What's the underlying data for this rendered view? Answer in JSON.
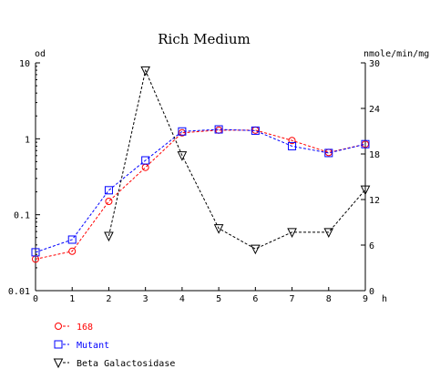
{
  "chart_data": {
    "type": "line",
    "title": "Rich Medium",
    "y_left_label": "od",
    "y_right_label": "nmole/min/mg",
    "x_unit_label": "h",
    "x_ticks": [
      "0",
      "1",
      "2",
      "3",
      "4",
      "5",
      "6",
      "7",
      "8",
      "9"
    ],
    "y_left_scale": "log",
    "y_left_ticks": [
      "10",
      "1",
      "0.1",
      "0.01"
    ],
    "y_left_range": [
      0.01,
      10
    ],
    "y_right_ticks": [
      "30",
      "24",
      "18",
      "12",
      "6",
      "0"
    ],
    "y_right_range": [
      0,
      30
    ],
    "x_range": [
      0,
      9
    ],
    "grid": false,
    "legend_position": "bottom-left",
    "series": [
      {
        "name": "168",
        "axis": "left",
        "color": "#ff0000",
        "marker": "circle",
        "line": "dashed",
        "x": [
          0,
          1,
          2,
          3,
          4,
          5,
          6,
          7,
          8,
          9
        ],
        "y": [
          0.026,
          0.033,
          0.15,
          0.42,
          1.2,
          1.3,
          1.3,
          0.95,
          0.66,
          0.85
        ]
      },
      {
        "name": "Mutant",
        "axis": "left",
        "color": "#0000ff",
        "marker": "square",
        "line": "dashed",
        "x": [
          0,
          1,
          2,
          3,
          4,
          5,
          6,
          7,
          8,
          9
        ],
        "y": [
          0.032,
          0.047,
          0.21,
          0.52,
          1.25,
          1.33,
          1.28,
          0.8,
          0.65,
          0.85
        ]
      },
      {
        "name": "Beta Galactosidase",
        "axis": "right",
        "color": "#000000",
        "marker": "triangle-down",
        "line": "dashed",
        "x": [
          2,
          3,
          4,
          5,
          6,
          7,
          8,
          9
        ],
        "y": [
          7.2,
          29,
          17.8,
          8.2,
          5.5,
          7.7,
          7.7,
          13.3
        ]
      }
    ]
  }
}
